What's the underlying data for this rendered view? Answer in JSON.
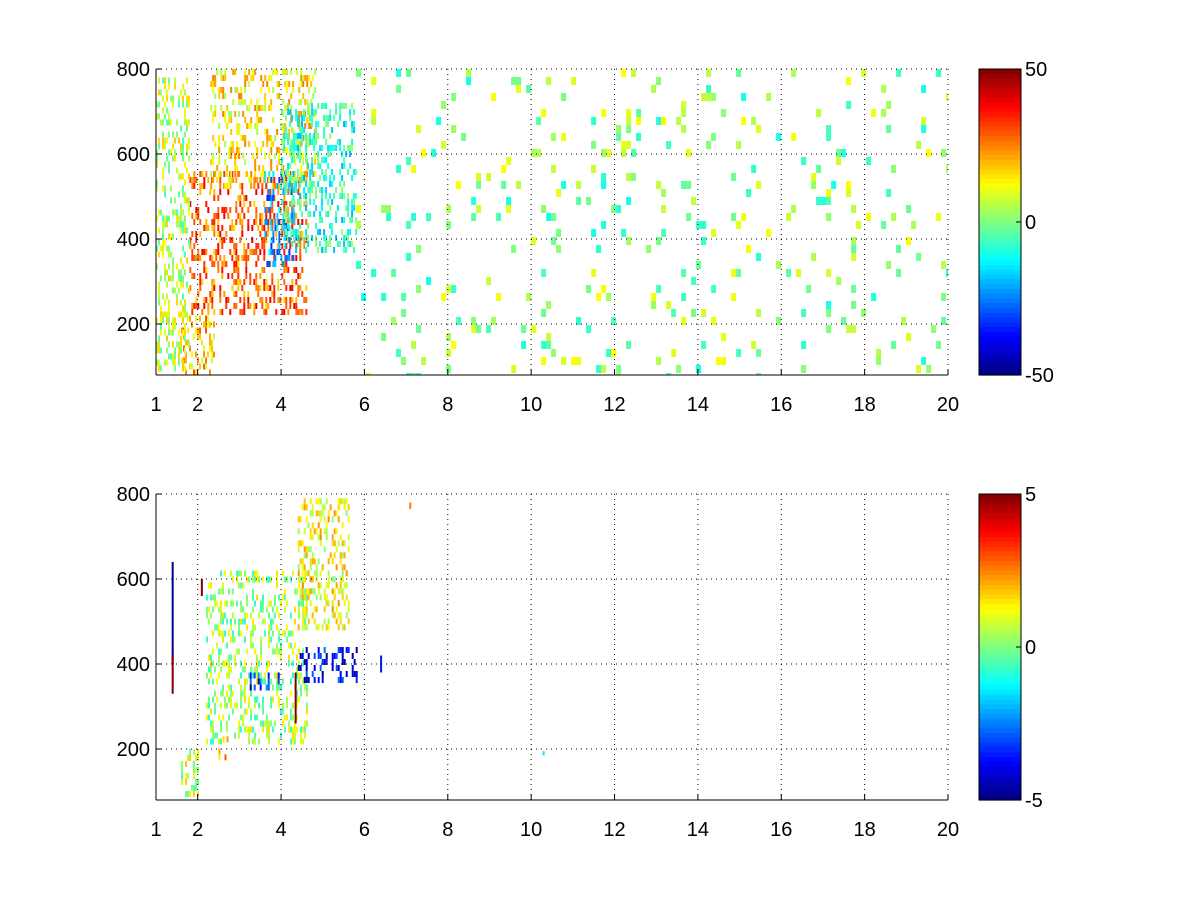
{
  "chart_data": [
    {
      "type": "heatmap",
      "title": "",
      "xlabel": "",
      "ylabel": "",
      "xlim": [
        1,
        20
      ],
      "ylim": [
        80,
        800
      ],
      "x_ticks": [
        1,
        2,
        4,
        6,
        8,
        10,
        12,
        14,
        16,
        18,
        20
      ],
      "y_ticks": [
        200,
        400,
        600,
        800
      ],
      "x_tick_labels": [
        "1",
        "2",
        "4",
        "6",
        "8",
        "10",
        "12",
        "14",
        "16",
        "18",
        "20"
      ],
      "y_tick_labels": [
        "200",
        "400",
        "600",
        "800"
      ],
      "grid": true,
      "colormap": "jet",
      "colorbar": {
        "min": -50,
        "max": 50,
        "tick_labels": [
          "50",
          "0",
          "-50"
        ],
        "ticks": [
          50,
          0,
          -50
        ]
      },
      "regions": [
        {
          "x": [
            1.8,
            4.6
          ],
          "y": [
            230,
            560
          ],
          "value": 28
        },
        {
          "x": [
            2.3,
            4.8
          ],
          "y": [
            520,
            800
          ],
          "value": 14
        },
        {
          "x": [
            3.6,
            4.3
          ],
          "y": [
            340,
            560
          ],
          "value": -22
        },
        {
          "x": [
            4.0,
            5.8
          ],
          "y": [
            380,
            720
          ],
          "value": -8
        },
        {
          "x": [
            1.6,
            2.4
          ],
          "y": [
            85,
            220
          ],
          "value": 18
        },
        {
          "x": [
            1.0,
            1.8
          ],
          "y": [
            100,
            780
          ],
          "value": 6
        },
        {
          "x": [
            5.8,
            20.0
          ],
          "y": [
            80,
            800
          ],
          "value": 1
        }
      ]
    },
    {
      "type": "heatmap",
      "title": "",
      "xlabel": "",
      "ylabel": "",
      "xlim": [
        1,
        20
      ],
      "ylim": [
        80,
        800
      ],
      "x_ticks": [
        1,
        2,
        4,
        6,
        8,
        10,
        12,
        14,
        16,
        18,
        20
      ],
      "y_ticks": [
        200,
        400,
        600,
        800
      ],
      "x_tick_labels": [
        "1",
        "2",
        "4",
        "6",
        "8",
        "10",
        "12",
        "14",
        "16",
        "18",
        "20"
      ],
      "y_tick_labels": [
        "200",
        "400",
        "600",
        "800"
      ],
      "grid": true,
      "colormap": "jet",
      "colorbar": {
        "min": -5,
        "max": 5,
        "tick_labels": [
          "5",
          "0",
          "-5"
        ],
        "ticks": [
          5,
          0,
          -5
        ]
      },
      "regions": [
        {
          "x": [
            2.2,
            4.6
          ],
          "y": [
            220,
            620
          ],
          "value": 0.4
        },
        {
          "x": [
            3.2,
            4.0
          ],
          "y": [
            340,
            380
          ],
          "value": -3.5
        },
        {
          "x": [
            4.4,
            5.8
          ],
          "y": [
            360,
            440
          ],
          "value": -3.8
        },
        {
          "x": [
            4.4,
            5.6
          ],
          "y": [
            480,
            790
          ],
          "value": 1.2
        },
        {
          "x": [
            1.6,
            2.0
          ],
          "y": [
            90,
            200
          ],
          "value": 0.6
        },
        {
          "x": [
            2.5,
            2.7
          ],
          "y": [
            180,
            230
          ],
          "value": 2.5
        }
      ],
      "spikes": [
        {
          "x": 1.4,
          "y": [
            400,
            640
          ],
          "value": -5
        },
        {
          "x": 1.4,
          "y": [
            330,
            420
          ],
          "value": 5
        },
        {
          "x": 4.35,
          "y": [
            260,
            380
          ],
          "value": 5
        },
        {
          "x": 2.1,
          "y": [
            560,
            600
          ],
          "value": 5
        },
        {
          "x": 6.4,
          "y": [
            380,
            420
          ],
          "value": -3.5
        },
        {
          "x": 10.3,
          "y": [
            185,
            195
          ],
          "value": -1.5
        },
        {
          "x": 7.1,
          "y": [
            765,
            780
          ],
          "value": 2.5
        }
      ]
    }
  ]
}
